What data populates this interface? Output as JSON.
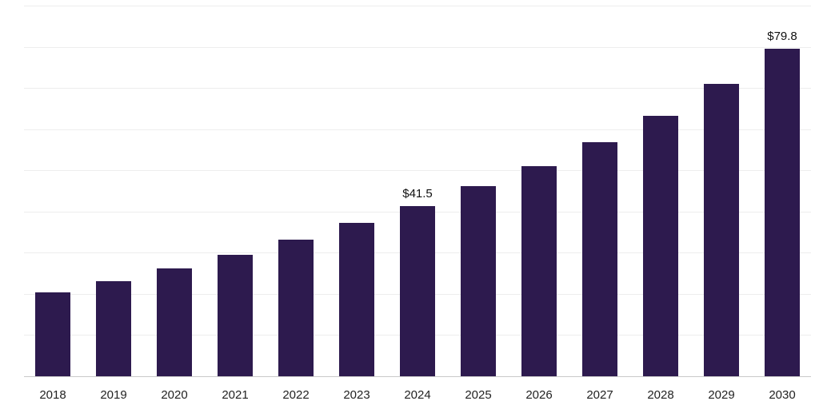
{
  "chart_data": {
    "type": "bar",
    "title": "",
    "xlabel": "",
    "ylabel": "",
    "categories": [
      "2018",
      "2019",
      "2020",
      "2021",
      "2022",
      "2023",
      "2024",
      "2025",
      "2026",
      "2027",
      "2028",
      "2029",
      "2030"
    ],
    "values": [
      20.5,
      23.2,
      26.4,
      29.6,
      33.4,
      37.4,
      41.5,
      46.3,
      51.2,
      57.0,
      63.4,
      71.2,
      79.8
    ],
    "data_labels": [
      "",
      "",
      "",
      "",
      "",
      "",
      "$41.5",
      "",
      "",
      "",
      "",
      "",
      "$79.8"
    ],
    "ylim": [
      0,
      90
    ],
    "gridline_step": 10,
    "grid": true,
    "legend": false,
    "bar_color": "#2d1a4e",
    "gridline_color": "#ededed",
    "axis_line_color": "#c9c9c9",
    "tick_label_color": "#222222",
    "value_label_color": "#111111"
  }
}
